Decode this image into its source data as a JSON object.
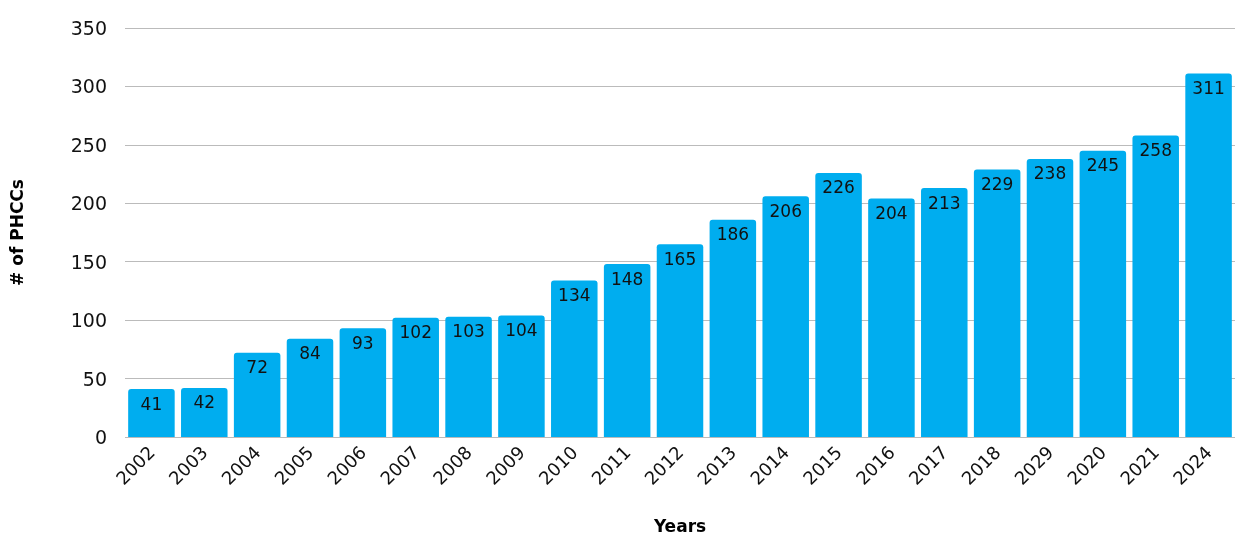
{
  "chart_data": {
    "type": "bar",
    "xlabel": "Years",
    "ylabel": "# of PHCCs",
    "categories": [
      "2002",
      "2003",
      "2004",
      "2005",
      "2006",
      "2007",
      "2008",
      "2009",
      "2010",
      "2011",
      "2012",
      "2013",
      "2014",
      "2015",
      "2016",
      "2017",
      "2018",
      "2029",
      "2020",
      "2021",
      "2024"
    ],
    "values": [
      41,
      42,
      72,
      84,
      93,
      102,
      103,
      104,
      134,
      148,
      165,
      186,
      206,
      226,
      204,
      213,
      229,
      238,
      245,
      258,
      311
    ],
    "color": "#00adef",
    "ylim": [
      0,
      350
    ],
    "yticks": [
      0,
      50,
      100,
      150,
      200,
      250,
      300,
      350
    ],
    "grid": "y",
    "data_labels": true
  }
}
